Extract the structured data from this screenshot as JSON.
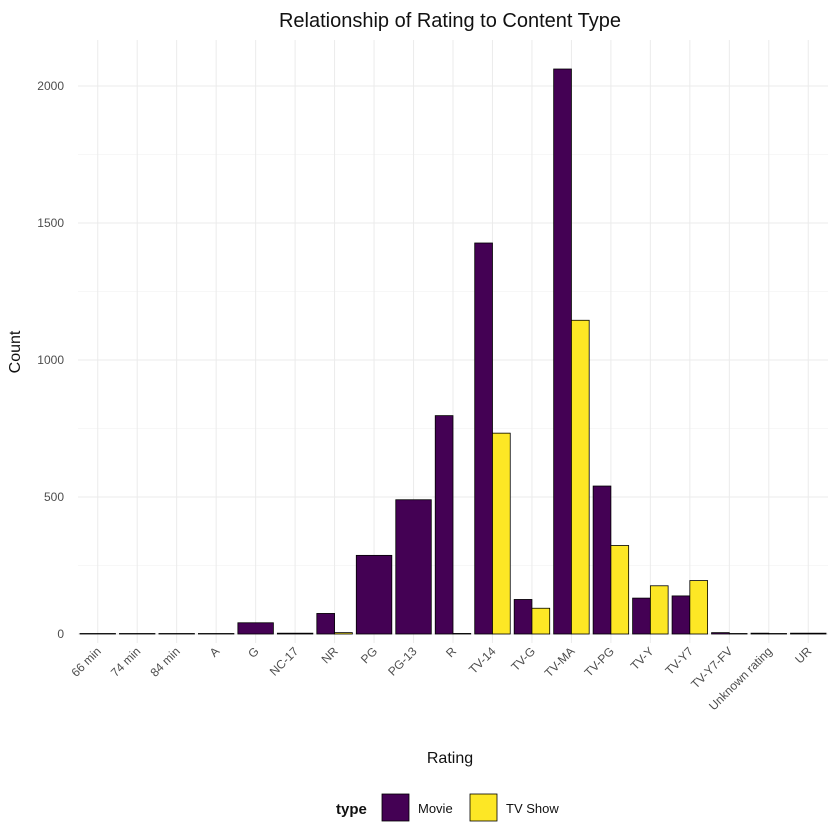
{
  "chart_data": {
    "type": "bar",
    "title": "Relationship of Rating to Content Type",
    "xlabel": "Rating",
    "ylabel": "Count",
    "ylim": [
      -30,
      2100
    ],
    "yticks": [
      0,
      500,
      1000,
      1500,
      2000
    ],
    "grid": true,
    "legend_position": "bottom",
    "legend_title": "type",
    "categories": [
      "66 min",
      "74 min",
      "84 min",
      "A",
      "G",
      "NC-17",
      "NR",
      "PG",
      "PG-13",
      "R",
      "TV-14",
      "TV-G",
      "TV-MA",
      "TV-PG",
      "TV-Y",
      "TV-Y7",
      "TV-Y7-FV",
      "Unknown rating",
      "UR"
    ],
    "series": [
      {
        "name": "Movie",
        "color": "#440154",
        "values": [
          1,
          1,
          1,
          1,
          41,
          3,
          75,
          287,
          490,
          797,
          1427,
          126,
          2062,
          540,
          131,
          139,
          5,
          3,
          3
        ]
      },
      {
        "name": "TV Show",
        "color": "#FDE725",
        "values": [
          null,
          null,
          null,
          null,
          null,
          null,
          5,
          null,
          null,
          2,
          733,
          94,
          1145,
          323,
          176,
          195,
          1,
          1,
          null
        ]
      }
    ]
  }
}
